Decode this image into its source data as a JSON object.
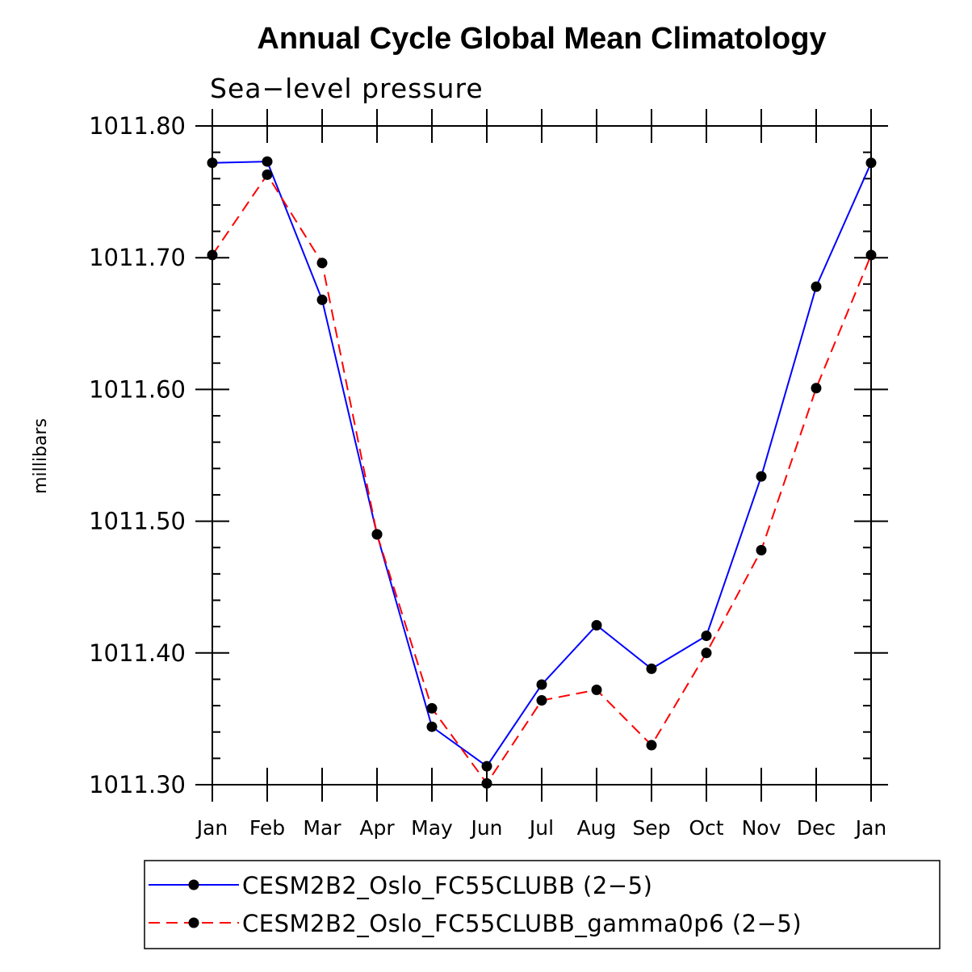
{
  "chart_data": {
    "type": "line",
    "title": "Annual Cycle Global Mean Climatology",
    "subtitle": "Sea−level pressure",
    "ylabel": "millibars",
    "xlabel": "",
    "ylim": [
      1011.3,
      1011.8
    ],
    "y_major_ticks": [
      1011.3,
      1011.4,
      1011.5,
      1011.6,
      1011.7,
      1011.8
    ],
    "y_tick_labels": [
      "1011.30",
      "1011.40",
      "1011.50",
      "1011.60",
      "1011.70",
      "1011.80"
    ],
    "y_minor_step": 0.02,
    "categories": [
      "Jan",
      "Feb",
      "Mar",
      "Apr",
      "May",
      "Jun",
      "Jul",
      "Aug",
      "Sep",
      "Oct",
      "Nov",
      "Dec",
      "Jan"
    ],
    "series": [
      {
        "name": "CESM2B2_Oslo_FC55CLUBB (2−5)",
        "color": "#0000ff",
        "dash": "solid",
        "values": [
          1011.772,
          1011.773,
          1011.668,
          1011.49,
          1011.344,
          1011.314,
          1011.376,
          1011.421,
          1011.388,
          1011.413,
          1011.534,
          1011.678,
          1011.772
        ]
      },
      {
        "name": "CESM2B2_Oslo_FC55CLUBB_gamma0p6 (2−5)",
        "color": "#ff0000",
        "dash": "dashed",
        "values": [
          1011.702,
          1011.763,
          1011.696,
          1011.49,
          1011.358,
          1011.301,
          1011.364,
          1011.372,
          1011.33,
          1011.4,
          1011.478,
          1011.601,
          1011.702
        ]
      }
    ],
    "marker_color": "#000000",
    "legend_position": "bottom"
  }
}
